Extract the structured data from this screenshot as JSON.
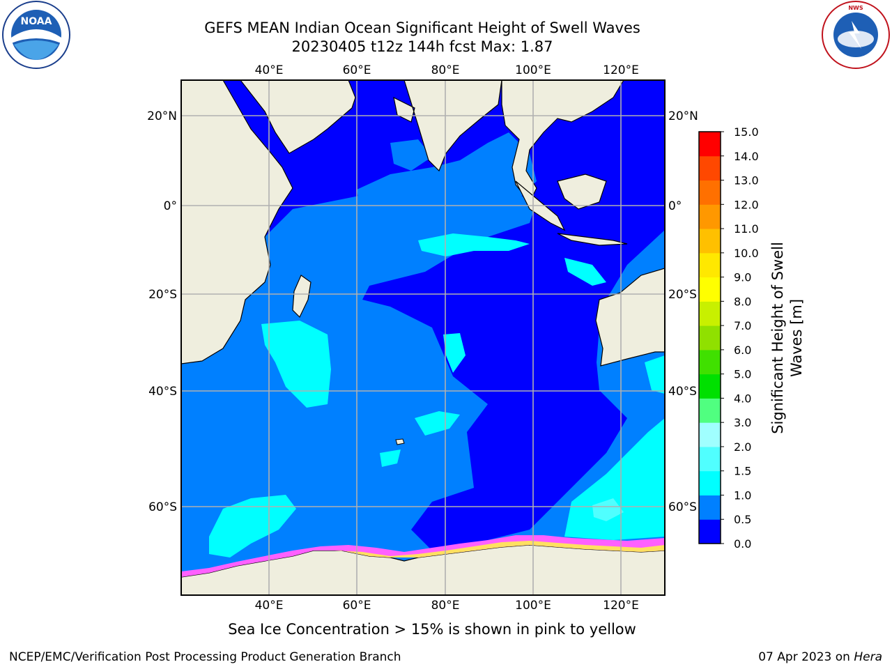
{
  "header": {
    "title_line1": "GEFS MEAN Indian Ocean Significant Height of Swell Waves",
    "title_line2": "20230405 t12z 144h fcst   Max: 1.87"
  },
  "logos": {
    "left": {
      "icon": "noaa-logo",
      "text": "NOAA"
    },
    "right": {
      "icon": "national-weather-service-logo",
      "text": "NATIONAL WEATHER SERVICE"
    }
  },
  "map": {
    "lon_ticks": [
      "40°E",
      "60°E",
      "80°E",
      "100°E",
      "120°E"
    ],
    "lat_ticks": [
      "20°N",
      "0°",
      "20°S",
      "40°S",
      "60°S"
    ],
    "colors": {
      "land": "#efeede",
      "ocean_0_0.5": "#0000ff",
      "ocean_0.5_1.0": "#0080ff",
      "ocean_1.0_1.5": "#00ffff",
      "ice_pink": "#ff60ff",
      "ice_yellow": "#ffe060",
      "grid": "#b0b0b0"
    }
  },
  "colorbar": {
    "title_line1": "Significant Height of Swell",
    "title_line2": "Waves [m]",
    "ticks": [
      "0.0",
      "0.5",
      "1.0",
      "1.5",
      "2.0",
      "3.0",
      "4.0",
      "5.0",
      "6.0",
      "7.0",
      "8.0",
      "9.0",
      "10.0",
      "11.0",
      "12.0",
      "13.0",
      "14.0",
      "15.0"
    ],
    "colors": [
      "#0000ff",
      "#0080ff",
      "#00ffff",
      "#50ffff",
      "#a0ffff",
      "#50ff80",
      "#00e000",
      "#40e000",
      "#90e000",
      "#c8f000",
      "#ffff00",
      "#ffe800",
      "#ffc000",
      "#ff9800",
      "#ff7000",
      "#ff4800",
      "#ff0000"
    ]
  },
  "caption": "Sea Ice Concentration > 15% is shown in pink to yellow",
  "footer": {
    "left": "NCEP/EMC/Verification Post Processing Product Generation Branch",
    "right_date": "07 Apr 2023 on",
    "right_host": "Hera"
  }
}
